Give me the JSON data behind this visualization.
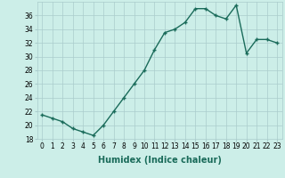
{
  "x": [
    0,
    1,
    2,
    3,
    4,
    5,
    6,
    7,
    8,
    9,
    10,
    11,
    12,
    13,
    14,
    15,
    16,
    17,
    18,
    19,
    20,
    21,
    22,
    23
  ],
  "y": [
    21.5,
    21.0,
    20.5,
    19.5,
    19.0,
    18.5,
    20.0,
    22.0,
    24.0,
    26.0,
    28.0,
    31.0,
    33.5,
    34.0,
    35.0,
    37.0,
    37.0,
    36.0,
    35.5,
    37.5,
    30.5,
    32.5,
    32.5,
    32.0
  ],
  "line_color": "#1a6b5a",
  "marker": "+",
  "marker_size": 3,
  "bg_color": "#cceee8",
  "grid_color": "#aacccc",
  "xlabel": "Humidex (Indice chaleur)",
  "xlim": [
    -0.5,
    23.5
  ],
  "ylim": [
    18,
    38
  ],
  "yticks": [
    18,
    20,
    22,
    24,
    26,
    28,
    30,
    32,
    34,
    36
  ],
  "xticks": [
    0,
    1,
    2,
    3,
    4,
    5,
    6,
    7,
    8,
    9,
    10,
    11,
    12,
    13,
    14,
    15,
    16,
    17,
    18,
    19,
    20,
    21,
    22,
    23
  ],
  "xtick_labels": [
    "0",
    "1",
    "2",
    "3",
    "4",
    "5",
    "6",
    "7",
    "8",
    "9",
    "10",
    "11",
    "12",
    "13",
    "14",
    "15",
    "16",
    "17",
    "18",
    "19",
    "20",
    "21",
    "22",
    "23"
  ],
  "xlabel_fontsize": 7,
  "tick_fontsize": 5.5,
  "linewidth": 1.0
}
